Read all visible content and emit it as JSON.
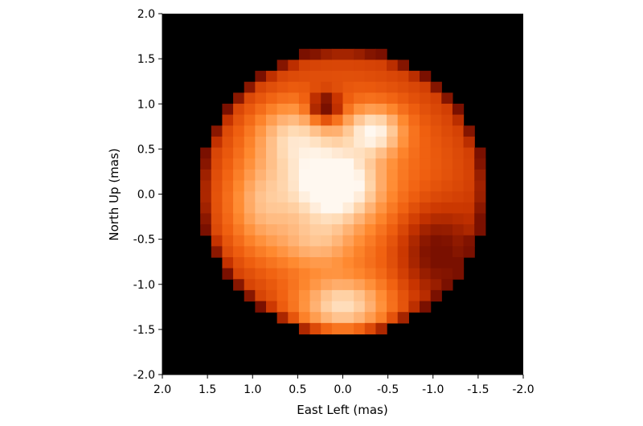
{
  "chart_data": {
    "type": "heatmap",
    "title": "",
    "xlabel": "East Left (mas)",
    "ylabel": "North Up (mas)",
    "xlim": [
      2.0,
      -2.0
    ],
    "ylim": [
      -2.0,
      2.0
    ],
    "x_ticks": [
      2.0,
      1.5,
      1.0,
      0.5,
      0.0,
      -0.5,
      -1.0,
      -1.5,
      -2.0
    ],
    "x_tick_labels": [
      "2.0",
      "1.5",
      "1.0",
      "0.5",
      "0.0",
      "-0.5",
      "-1.0",
      "-1.5",
      "-2.0"
    ],
    "y_ticks": [
      2.0,
      1.5,
      1.0,
      0.5,
      0.0,
      -0.5,
      -1.0,
      -1.5,
      -2.0
    ],
    "y_tick_labels": [
      "2.0",
      "1.5",
      "1.0",
      "0.5",
      "0.0",
      "-0.5",
      "-1.0",
      "-1.5",
      "-2.0"
    ],
    "grid": false,
    "background_color": "#000000",
    "colormap": [
      "#7a1000",
      "#c83400",
      "#f06010",
      "#ff8a30",
      "#ffb070",
      "#ffd8b0",
      "#fff8f0"
    ],
    "disk": {
      "center": [
        0.0,
        0.03
      ],
      "radius": 1.58
    },
    "bright_features": [
      {
        "name": "central",
        "x": 0.1,
        "y": 0.1,
        "sx": 0.35,
        "sy": 0.3,
        "amp": 0.85
      },
      {
        "name": "upper-right",
        "x": -0.35,
        "y": 0.7,
        "sx": 0.22,
        "sy": 0.18,
        "amp": 0.6
      },
      {
        "name": "upper-arc-left",
        "x": 0.55,
        "y": 0.65,
        "sx": 0.3,
        "sy": 0.25,
        "amp": 0.45
      },
      {
        "name": "lower-bright",
        "x": 0.0,
        "y": -1.25,
        "sx": 0.35,
        "sy": 0.22,
        "amp": 0.6
      },
      {
        "name": "left-arc",
        "x": 0.9,
        "y": -0.1,
        "sx": 0.25,
        "sy": 0.35,
        "amp": 0.35
      },
      {
        "name": "mid-lower",
        "x": 0.3,
        "y": -0.55,
        "sx": 0.3,
        "sy": 0.2,
        "amp": 0.3
      }
    ],
    "dark_features": [
      {
        "name": "upper-dark-notch",
        "x": 0.2,
        "y": 0.95,
        "sx": 0.13,
        "sy": 0.12,
        "amp": 0.55
      },
      {
        "name": "right-dark",
        "x": -1.0,
        "y": -0.6,
        "sx": 0.3,
        "sy": 0.35,
        "amp": 0.3
      }
    ]
  }
}
